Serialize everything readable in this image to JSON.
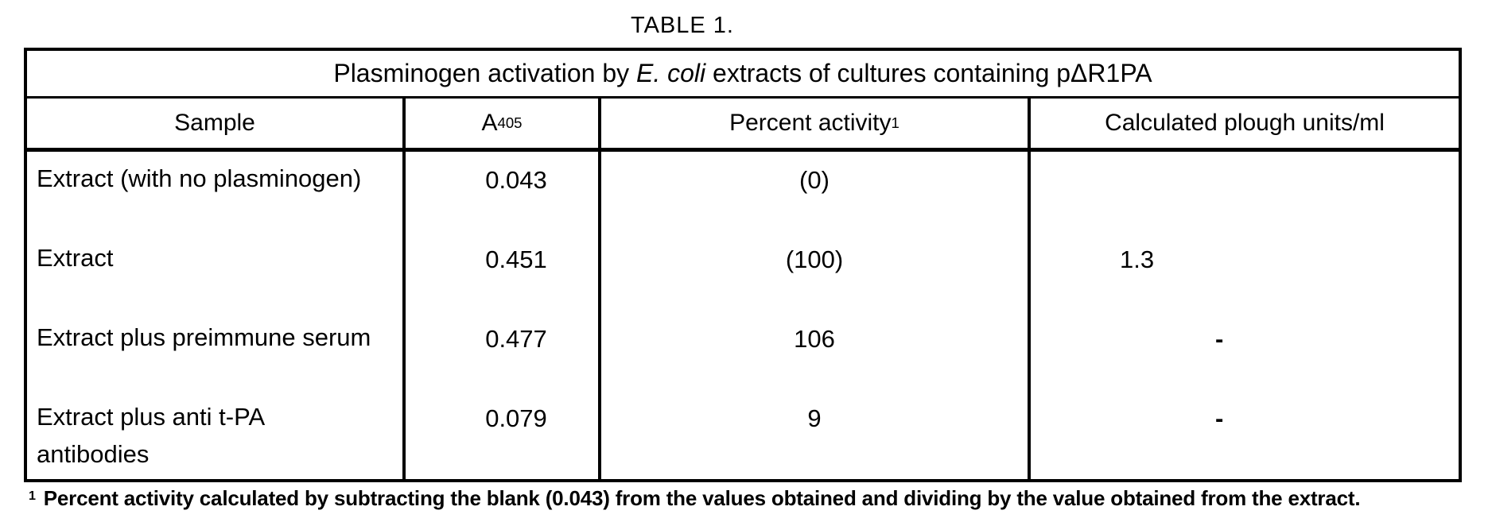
{
  "title": "TABLE 1.",
  "table": {
    "caption": {
      "prefix": "Plasminogen activation by ",
      "italic": "E. coli",
      "suffix": " extracts of cultures containing pΔR1PA"
    },
    "headers": {
      "sample": "Sample",
      "a405_base": "A",
      "a405_sup": "405",
      "percent_base": "Percent activity",
      "percent_sup": "1",
      "plough": "Calculated plough units/ml"
    },
    "rows": [
      {
        "sample": "Extract (with no plasminogen)",
        "a405": "0.043",
        "percent": "(0)",
        "plough": ""
      },
      {
        "sample": "Extract",
        "a405": "0.451",
        "percent": "(100)",
        "plough": "1.3"
      },
      {
        "sample": "Extract plus preimmune serum",
        "a405": "0.477",
        "percent": "106",
        "plough": "-"
      },
      {
        "sample": "Extract plus anti t-PA\nantibodies",
        "a405": "0.079",
        "percent": "9",
        "plough": "-"
      }
    ]
  },
  "footnote": {
    "sup": "1",
    "text": "Percent activity calculated by subtracting the blank (0.043) from the values obtained and dividing by the value obtained from the extract."
  },
  "colors": {
    "ink": "#000000",
    "paper": "#ffffff"
  }
}
